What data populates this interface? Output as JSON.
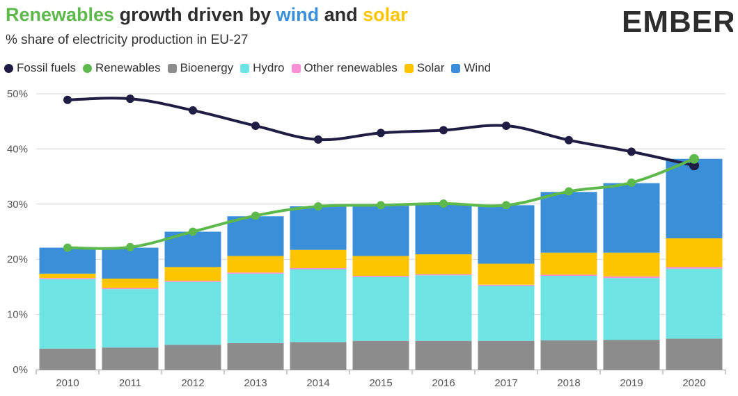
{
  "header": {
    "title_parts": [
      {
        "text": "Renewables",
        "color": "#5db94c"
      },
      {
        "text": " growth driven by ",
        "color": "#2d2d2d"
      },
      {
        "text": "wind",
        "color": "#3a8fd8"
      },
      {
        "text": " and ",
        "color": "#2d2d2d"
      },
      {
        "text": "solar",
        "color": "#fcc500"
      }
    ],
    "subtitle": "% share of electricity production in EU-27",
    "logo_text": "EMBER",
    "logo_color": "#2d2d2d",
    "logo_accent": "#5db94c"
  },
  "legend": [
    {
      "label": "Fossil fuels",
      "color": "#1f1d43",
      "shape": "dot"
    },
    {
      "label": "Renewables",
      "color": "#5db94c",
      "shape": "dot"
    },
    {
      "label": "Bioenergy",
      "color": "#8c8c8c",
      "shape": "square"
    },
    {
      "label": "Hydro",
      "color": "#6ee3e3",
      "shape": "square"
    },
    {
      "label": "Other renewables",
      "color": "#f88ed3",
      "shape": "square"
    },
    {
      "label": "Solar",
      "color": "#fcc500",
      "shape": "square"
    },
    {
      "label": "Wind",
      "color": "#3a8fd8",
      "shape": "square"
    }
  ],
  "chart_data": {
    "type": "bar",
    "stacked": true,
    "title": "",
    "xlabel": "",
    "ylabel": "",
    "ylim": [
      0,
      50
    ],
    "yticks": [
      0,
      10,
      20,
      30,
      40,
      50
    ],
    "ytick_labels": [
      "0%",
      "10%",
      "20%",
      "30%",
      "40%",
      "50%"
    ],
    "grid": true,
    "categories": [
      "2010",
      "2011",
      "2012",
      "2013",
      "2014",
      "2015",
      "2016",
      "2017",
      "2018",
      "2019",
      "2020"
    ],
    "bar_series": [
      {
        "name": "Bioenergy",
        "color": "#8c8c8c",
        "values": [
          3.8,
          4.0,
          4.5,
          4.8,
          5.0,
          5.2,
          5.2,
          5.2,
          5.3,
          5.4,
          5.6
        ]
      },
      {
        "name": "Hydro",
        "color": "#6ee3e3",
        "values": [
          12.6,
          10.6,
          11.4,
          12.6,
          13.2,
          11.6,
          11.9,
          10.0,
          11.7,
          11.2,
          12.7
        ]
      },
      {
        "name": "Other renewables",
        "color": "#f88ed3",
        "values": [
          0.2,
          0.2,
          0.2,
          0.2,
          0.2,
          0.2,
          0.2,
          0.2,
          0.2,
          0.3,
          0.3
        ]
      },
      {
        "name": "Solar",
        "color": "#fcc500",
        "values": [
          0.8,
          1.7,
          2.5,
          3.0,
          3.3,
          3.6,
          3.6,
          3.8,
          4.0,
          4.3,
          5.2
        ]
      },
      {
        "name": "Wind",
        "color": "#3a8fd8",
        "values": [
          4.7,
          5.6,
          6.4,
          7.2,
          7.9,
          9.1,
          9.2,
          10.6,
          11.0,
          12.6,
          14.4
        ]
      }
    ],
    "line_series": [
      {
        "name": "Fossil fuels",
        "color": "#1f1d43",
        "values": [
          48.9,
          49.1,
          47.0,
          44.2,
          41.7,
          42.9,
          43.4,
          44.2,
          41.6,
          39.5,
          37.0
        ]
      },
      {
        "name": "Renewables",
        "color": "#5db94c",
        "values": [
          22.1,
          22.2,
          25.0,
          27.9,
          29.6,
          29.8,
          30.1,
          29.8,
          32.3,
          33.9,
          38.2
        ]
      }
    ]
  }
}
